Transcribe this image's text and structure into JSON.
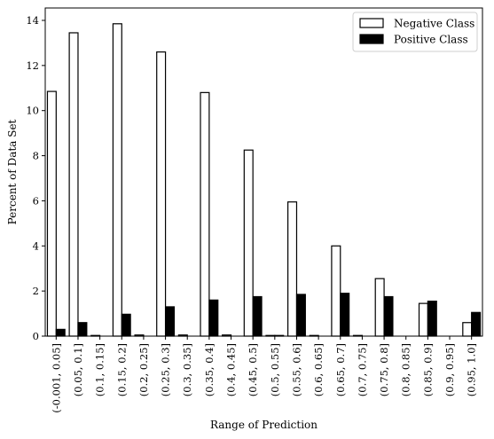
{
  "chart_data": {
    "type": "bar",
    "title": "",
    "xlabel": "Range of Prediction",
    "ylabel": "Percent of Data Set",
    "ylim": [
      0,
      14.55
    ],
    "yticks": [
      0,
      2,
      4,
      6,
      8,
      10,
      12,
      14
    ],
    "grid": false,
    "legend_position": "top-right",
    "categories": [
      "(-0.001, 0.05]",
      "(0.05, 0.1]",
      "(0.1, 0.15]",
      "(0.15, 0.2]",
      "(0.2, 0.25]",
      "(0.25, 0.3]",
      "(0.3, 0.35]",
      "(0.35, 0.4]",
      "(0.4, 0.45]",
      "(0.45, 0.5]",
      "(0.5, 0.55]",
      "(0.55, 0.6]",
      "(0.6, 0.65]",
      "(0.65, 0.7]",
      "(0.7, 0.75]",
      "(0.75, 0.8]",
      "(0.8, 0.85]",
      "(0.85, 0.9]",
      "(0.9, 0.95]",
      "(0.95, 1.0]"
    ],
    "series": [
      {
        "name": "Negative Class",
        "fill": "#ffffff",
        "stroke": "#000000",
        "values": [
          10.85,
          13.45,
          0.03,
          13.85,
          0.05,
          12.6,
          0.05,
          10.8,
          0.05,
          8.25,
          0.03,
          5.95,
          0.03,
          4.0,
          0.03,
          2.55,
          0.0,
          1.45,
          0.0,
          0.6
        ]
      },
      {
        "name": "Positive Class",
        "fill": "#000000",
        "stroke": "#000000",
        "values": [
          0.3,
          0.6,
          0.0,
          0.97,
          0.0,
          1.3,
          0.0,
          1.6,
          0.0,
          1.75,
          0.03,
          1.85,
          0.0,
          1.9,
          0.0,
          1.75,
          0.0,
          1.55,
          0.0,
          1.05
        ]
      }
    ]
  }
}
